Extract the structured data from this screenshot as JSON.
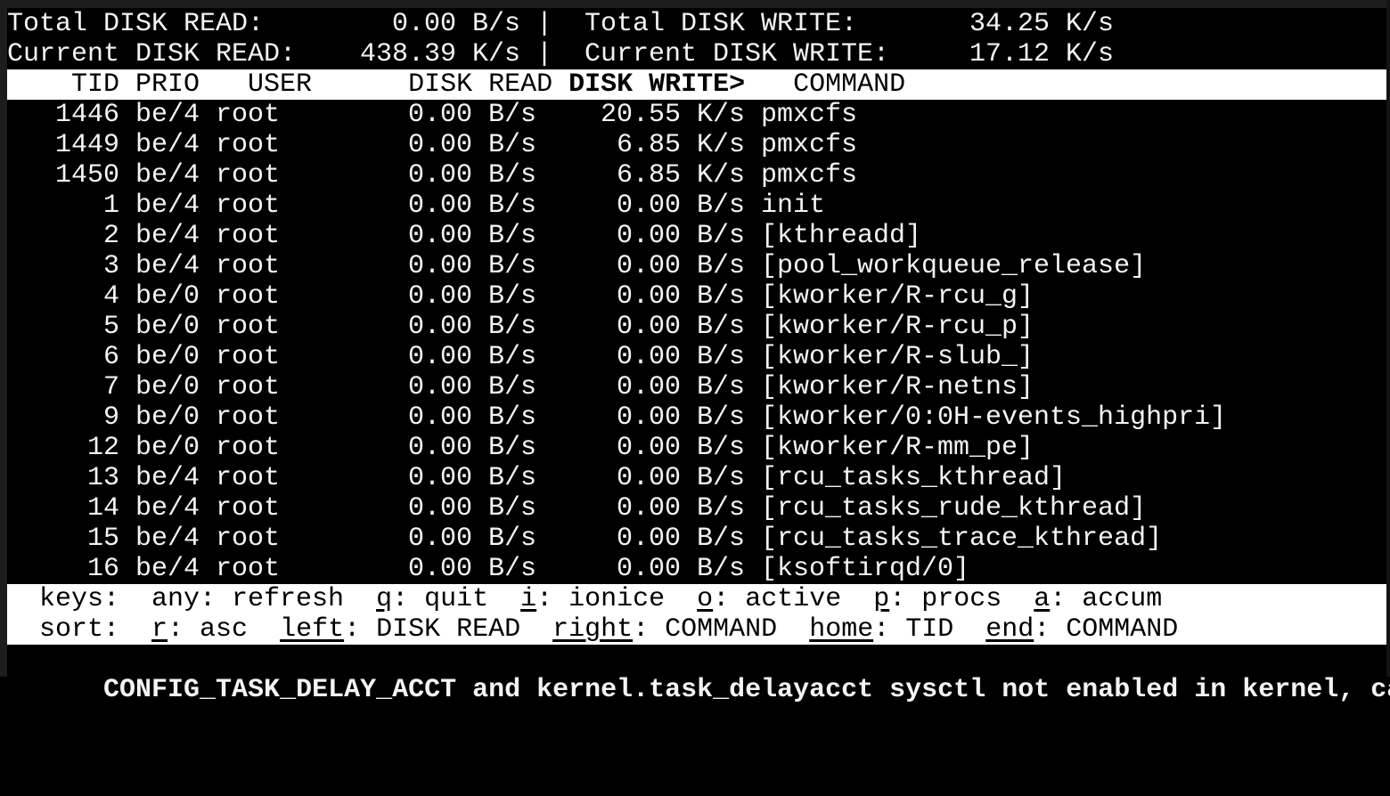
{
  "terminal": {
    "app": "iotop",
    "summary": {
      "total_read_label": "Total DISK READ:",
      "total_read_value": "0.00 B/s",
      "separator": "|",
      "total_write_label": "Total DISK WRITE:",
      "total_write_value": "34.25 K/s",
      "current_read_label": "Current DISK READ:",
      "current_read_value": "438.39 K/s",
      "current_write_label": "Current DISK WRITE:",
      "current_write_value": "17.12 K/s"
    },
    "table": {
      "columns": [
        "TID",
        "PRIO",
        "USER",
        "DISK READ",
        "DISK WRITE",
        "COMMAND"
      ],
      "sort_indicator": ">",
      "header": {
        "pre": "    TID PRIO   USER      DISK READ ",
        "sort_column": "DISK WRITE>",
        "post": "   COMMAND"
      },
      "rows": [
        {
          "tid": "1446",
          "prio": "be/4",
          "user": "root",
          "disk_read": "0.00 B/s",
          "disk_write": "20.55 K/s",
          "command": "pmxcfs"
        },
        {
          "tid": "1449",
          "prio": "be/4",
          "user": "root",
          "disk_read": "0.00 B/s",
          "disk_write": "6.85 K/s",
          "command": "pmxcfs"
        },
        {
          "tid": "1450",
          "prio": "be/4",
          "user": "root",
          "disk_read": "0.00 B/s",
          "disk_write": "6.85 K/s",
          "command": "pmxcfs"
        },
        {
          "tid": "1",
          "prio": "be/4",
          "user": "root",
          "disk_read": "0.00 B/s",
          "disk_write": "0.00 B/s",
          "command": "init"
        },
        {
          "tid": "2",
          "prio": "be/4",
          "user": "root",
          "disk_read": "0.00 B/s",
          "disk_write": "0.00 B/s",
          "command": "[kthreadd]"
        },
        {
          "tid": "3",
          "prio": "be/4",
          "user": "root",
          "disk_read": "0.00 B/s",
          "disk_write": "0.00 B/s",
          "command": "[pool_workqueue_release]"
        },
        {
          "tid": "4",
          "prio": "be/0",
          "user": "root",
          "disk_read": "0.00 B/s",
          "disk_write": "0.00 B/s",
          "command": "[kworker/R-rcu_g]"
        },
        {
          "tid": "5",
          "prio": "be/0",
          "user": "root",
          "disk_read": "0.00 B/s",
          "disk_write": "0.00 B/s",
          "command": "[kworker/R-rcu_p]"
        },
        {
          "tid": "6",
          "prio": "be/0",
          "user": "root",
          "disk_read": "0.00 B/s",
          "disk_write": "0.00 B/s",
          "command": "[kworker/R-slub_]"
        },
        {
          "tid": "7",
          "prio": "be/0",
          "user": "root",
          "disk_read": "0.00 B/s",
          "disk_write": "0.00 B/s",
          "command": "[kworker/R-netns]"
        },
        {
          "tid": "9",
          "prio": "be/0",
          "user": "root",
          "disk_read": "0.00 B/s",
          "disk_write": "0.00 B/s",
          "command": "[kworker/0:0H-events_highpri]"
        },
        {
          "tid": "12",
          "prio": "be/0",
          "user": "root",
          "disk_read": "0.00 B/s",
          "disk_write": "0.00 B/s",
          "command": "[kworker/R-mm_pe]"
        },
        {
          "tid": "13",
          "prio": "be/4",
          "user": "root",
          "disk_read": "0.00 B/s",
          "disk_write": "0.00 B/s",
          "command": "[rcu_tasks_kthread]"
        },
        {
          "tid": "14",
          "prio": "be/4",
          "user": "root",
          "disk_read": "0.00 B/s",
          "disk_write": "0.00 B/s",
          "command": "[rcu_tasks_rude_kthread]"
        },
        {
          "tid": "15",
          "prio": "be/4",
          "user": "root",
          "disk_read": "0.00 B/s",
          "disk_write": "0.00 B/s",
          "command": "[rcu_tasks_trace_kthread]"
        },
        {
          "tid": "16",
          "prio": "be/4",
          "user": "root",
          "disk_read": "0.00 B/s",
          "disk_write": "0.00 B/s",
          "command": "[ksoftirqd/0]"
        }
      ]
    },
    "footer": {
      "keys_line": [
        {
          "text": "  keys:  any: refresh  ",
          "key": false
        },
        {
          "text": "q",
          "key": true
        },
        {
          "text": ": quit  ",
          "key": false
        },
        {
          "text": "i",
          "key": true
        },
        {
          "text": ": ionice  ",
          "key": false
        },
        {
          "text": "o",
          "key": true
        },
        {
          "text": ": active  ",
          "key": false
        },
        {
          "text": "p",
          "key": true
        },
        {
          "text": ": procs  ",
          "key": false
        },
        {
          "text": "a",
          "key": true
        },
        {
          "text": ": accum",
          "key": false
        }
      ],
      "sort_line": [
        {
          "text": "  sort:  ",
          "key": false
        },
        {
          "text": "r",
          "key": true
        },
        {
          "text": ": asc  ",
          "key": false
        },
        {
          "text": "left",
          "key": true
        },
        {
          "text": ": DISK READ  ",
          "key": false
        },
        {
          "text": "right",
          "key": true
        },
        {
          "text": ": COMMAND  ",
          "key": false
        },
        {
          "text": "home",
          "key": true
        },
        {
          "text": ": TID  ",
          "key": false
        },
        {
          "text": "end",
          "key": true
        },
        {
          "text": ": COMMAND",
          "key": false
        }
      ],
      "status_message": "CONFIG_TASK_DELAY_ACCT and kernel.task_delayacct sysctl not enabled in kernel, cannot"
    },
    "colors": {
      "background": "#000000",
      "foreground": "#f4f4f4",
      "inverse_bg": "#ffffff",
      "inverse_fg": "#000000",
      "frame": "#1d1d1d"
    }
  }
}
